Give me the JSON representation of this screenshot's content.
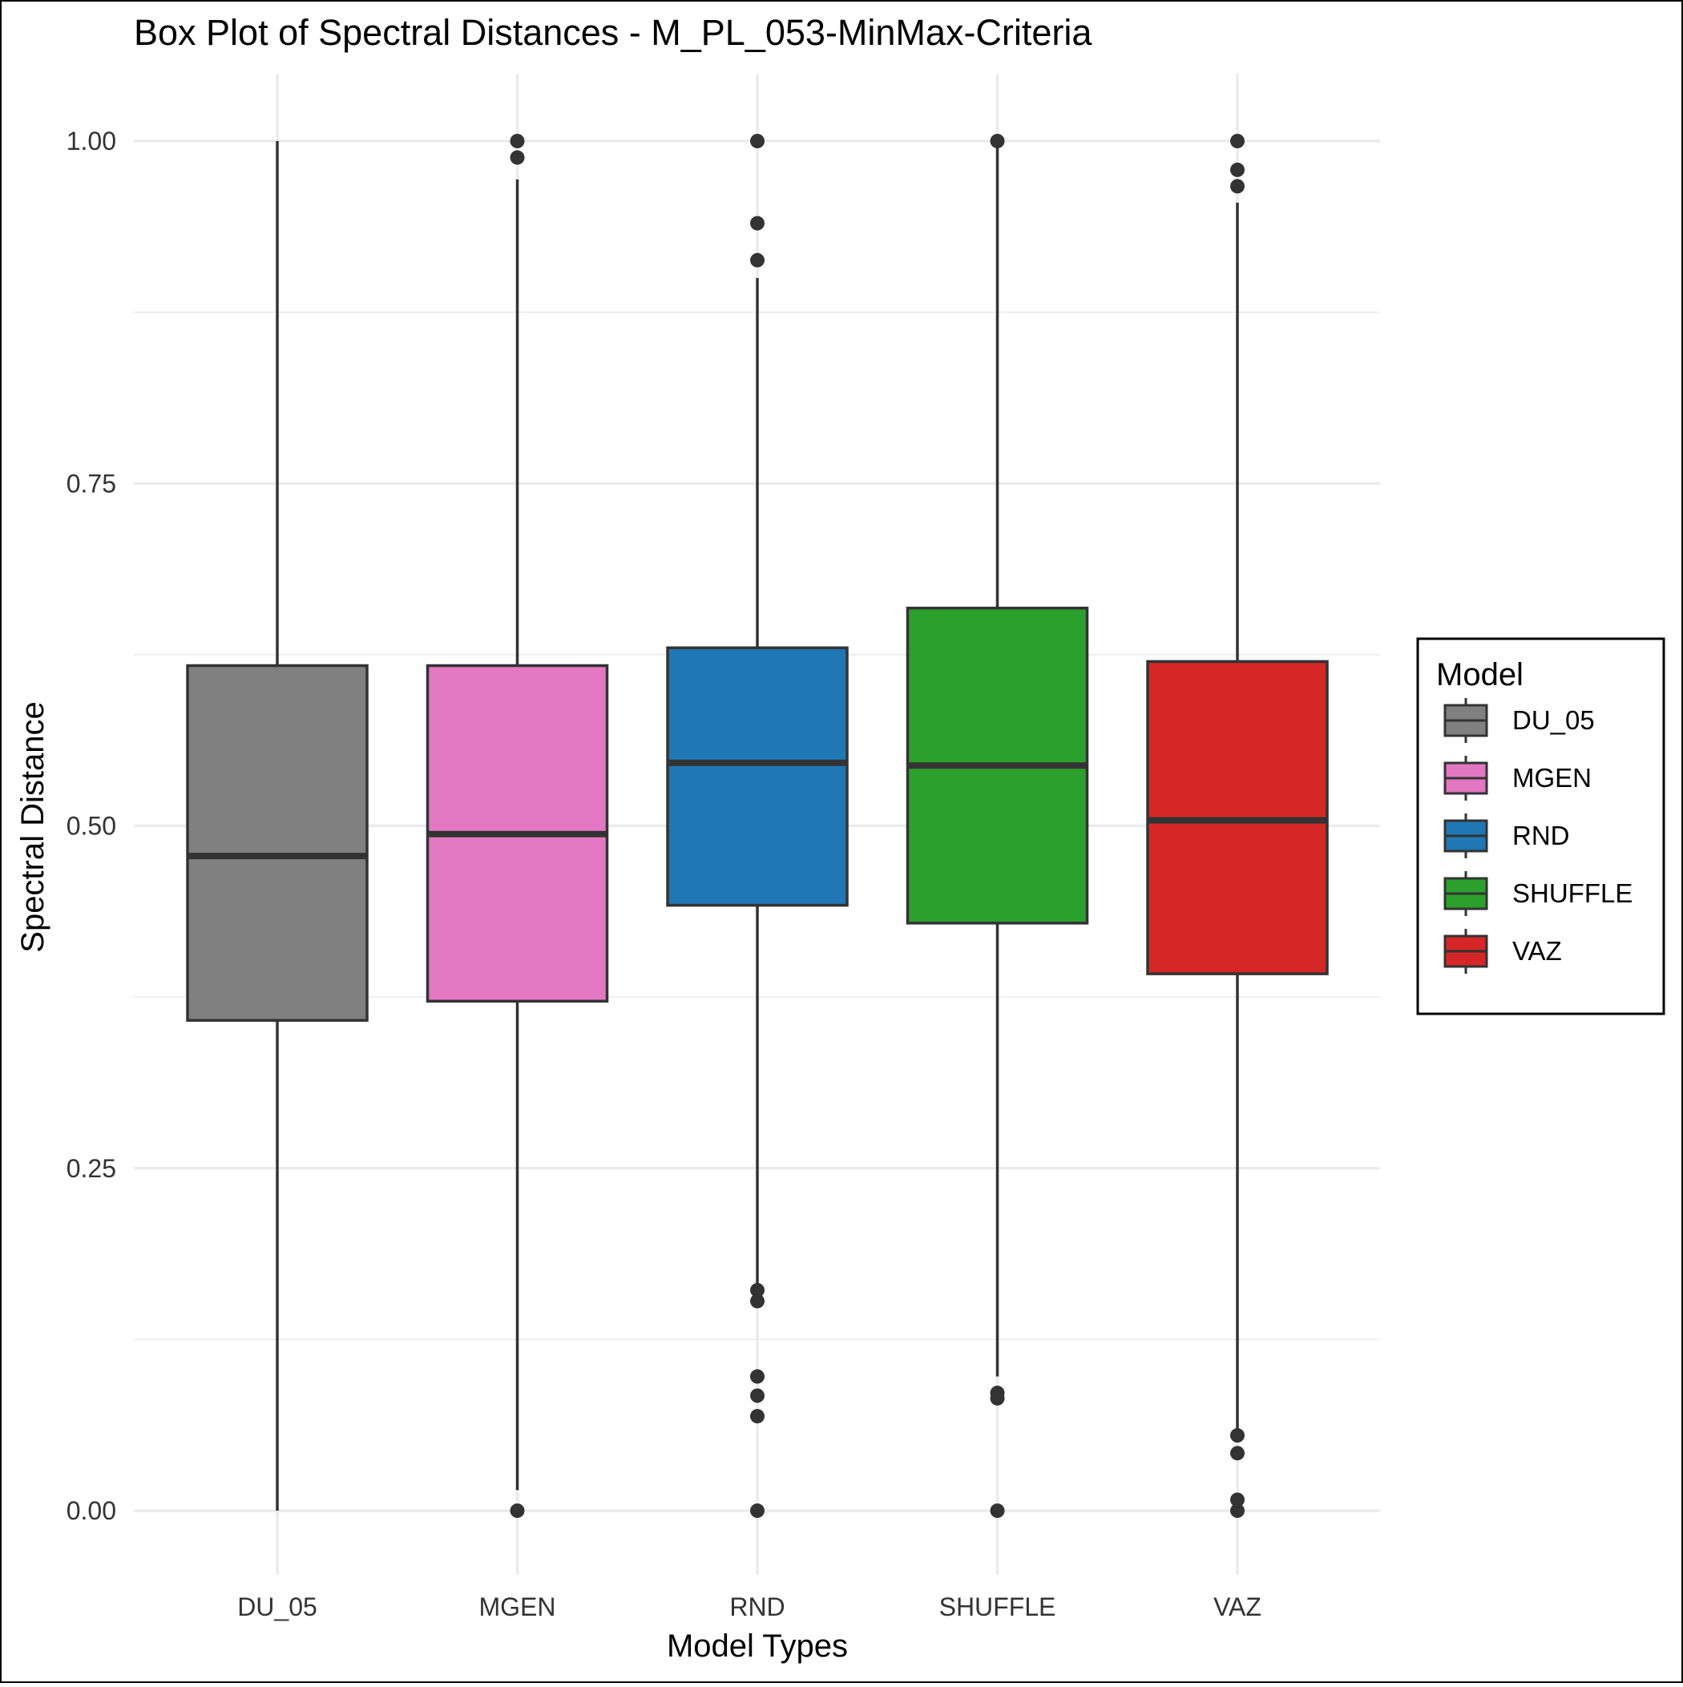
{
  "chart_data": {
    "type": "boxplot",
    "title": "Box Plot of Spectral Distances -  M_PL_053-MinMax-Criteria",
    "xlabel": "Model Types",
    "ylabel": "Spectral Distance",
    "categories": [
      "DU_05",
      "MGEN",
      "RND",
      "SHUFFLE",
      "VAZ"
    ],
    "ylim": [
      -0.05,
      1.05
    ],
    "yticks": [
      0.0,
      0.25,
      0.5,
      0.75,
      1.0
    ],
    "ytick_labels": [
      "0.00",
      "0.25",
      "0.50",
      "0.75",
      "1.00"
    ],
    "grid": true,
    "legend": {
      "title": "Model",
      "position": "right",
      "entries": [
        "DU_05",
        "MGEN",
        "RND",
        "SHUFFLE",
        "VAZ"
      ]
    },
    "series": [
      {
        "name": "DU_05",
        "color": "#808080",
        "whisker_low": 0.0,
        "q1": 0.358,
        "median": 0.478,
        "q3": 0.617,
        "whisker_high": 1.0,
        "outliers": []
      },
      {
        "name": "MGEN",
        "color": "#E377C2",
        "whisker_low": 0.015,
        "q1": 0.372,
        "median": 0.494,
        "q3": 0.617,
        "whisker_high": 0.972,
        "outliers": [
          0.0,
          0.988,
          1.0
        ]
      },
      {
        "name": "RND",
        "color": "#1F77B4",
        "whisker_low": 0.16,
        "q1": 0.442,
        "median": 0.546,
        "q3": 0.63,
        "whisker_high": 0.9,
        "outliers": [
          0.0,
          0.069,
          0.084,
          0.098,
          0.153,
          0.161,
          0.913,
          0.94,
          1.0
        ]
      },
      {
        "name": "SHUFFLE",
        "color": "#2CA02C",
        "whisker_low": 0.098,
        "q1": 0.429,
        "median": 0.544,
        "q3": 0.659,
        "whisker_high": 1.0,
        "outliers": [
          0.0,
          0.082,
          0.086,
          1.0
        ]
      },
      {
        "name": "VAZ",
        "color": "#D62728",
        "whisker_low": 0.055,
        "q1": 0.392,
        "median": 0.504,
        "q3": 0.62,
        "whisker_high": 0.955,
        "outliers": [
          0.0,
          0.008,
          0.042,
          0.055,
          0.967,
          0.979,
          1.0
        ]
      }
    ]
  }
}
